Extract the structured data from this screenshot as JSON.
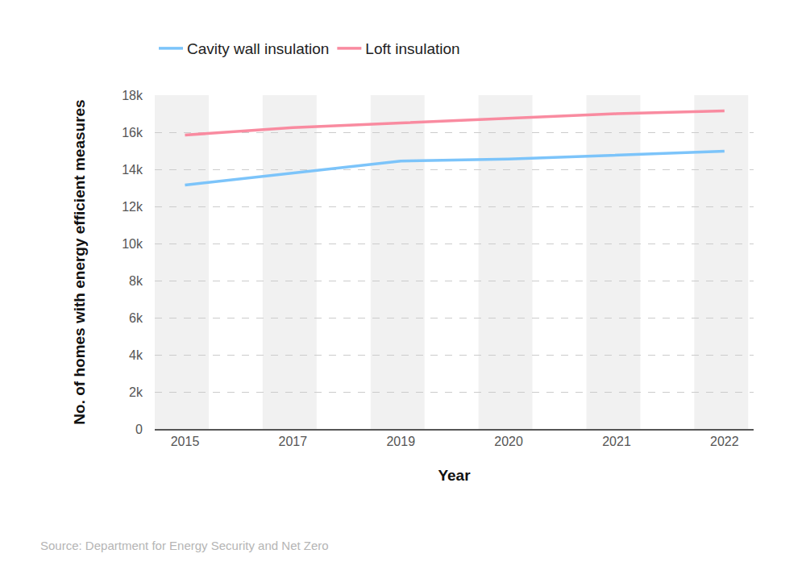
{
  "chart_data": {
    "type": "line",
    "x_label": "Year",
    "y_label": "No. of homes with energy efficient measures",
    "categories": [
      "2015",
      "2017",
      "2019",
      "2020",
      "2021",
      "2022"
    ],
    "series": [
      {
        "name": "Cavity wall insulation",
        "color": "#7cc4fa",
        "values": [
          13150,
          13800,
          14450,
          14550,
          14750,
          14980
        ]
      },
      {
        "name": "Loft insulation",
        "color": "#f98ba0",
        "values": [
          15850,
          16250,
          16500,
          16750,
          17000,
          17150
        ]
      }
    ],
    "ylim": [
      0,
      18000
    ],
    "yticks": [
      0,
      {
        "value": 2000,
        "label": "2k"
      },
      {
        "value": 4000,
        "label": "4k"
      },
      {
        "value": 6000,
        "label": "6k"
      },
      {
        "value": 8000,
        "label": "8k"
      },
      {
        "value": 10000,
        "label": "10k"
      },
      {
        "value": 12000,
        "label": "12k"
      },
      {
        "value": 14000,
        "label": "14k"
      },
      {
        "value": 16000,
        "label": "16k"
      },
      {
        "value": 18000,
        "label": "18k"
      }
    ],
    "grid": true,
    "legend": "top-left",
    "source": "Source: Department for Energy Security and Net Zero"
  }
}
